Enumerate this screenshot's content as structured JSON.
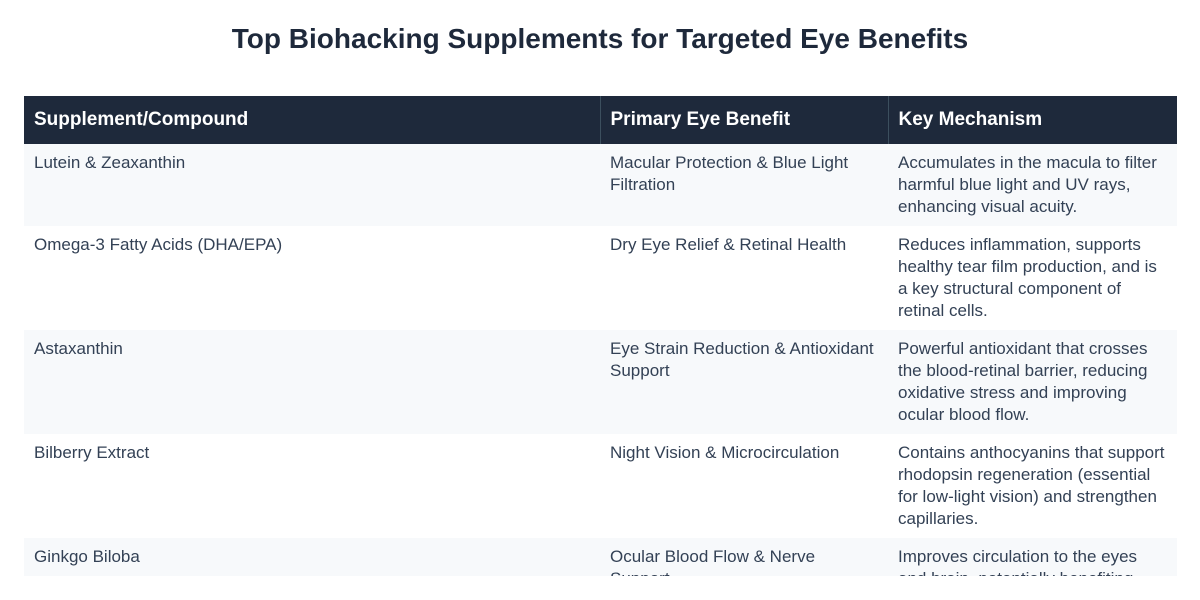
{
  "title": "Top Biohacking Supplements for Targeted Eye Benefits",
  "table": {
    "headers": [
      "Supplement/Compound",
      "Primary Eye Benefit",
      "Key Mechanism"
    ],
    "rows": [
      {
        "supplement": "Lutein & Zeaxanthin",
        "benefit": "Macular Protection & Blue Light Filtration",
        "mechanism": "Accumulates in the macula to filter harmful blue light and UV rays, enhancing visual acuity."
      },
      {
        "supplement": "Omega-3 Fatty Acids (DHA/EPA)",
        "benefit": "Dry Eye Relief & Retinal Health",
        "mechanism": "Reduces inflammation, supports healthy tear film production, and is a key structural component of retinal cells."
      },
      {
        "supplement": "Astaxanthin",
        "benefit": "Eye Strain Reduction & Antioxidant Support",
        "mechanism": "Powerful antioxidant that crosses the blood-retinal barrier, reducing oxidative stress and improving ocular blood flow."
      },
      {
        "supplement": "Bilberry Extract",
        "benefit": "Night Vision & Microcirculation",
        "mechanism": "Contains anthocyanins that support rhodopsin regeneration (essential for low-light vision) and strengthen capillaries."
      },
      {
        "supplement": "Ginkgo Biloba",
        "benefit": "Ocular Blood Flow & Nerve Support",
        "mechanism": "Improves circulation to the eyes and brain, potentially benefiting"
      }
    ]
  }
}
